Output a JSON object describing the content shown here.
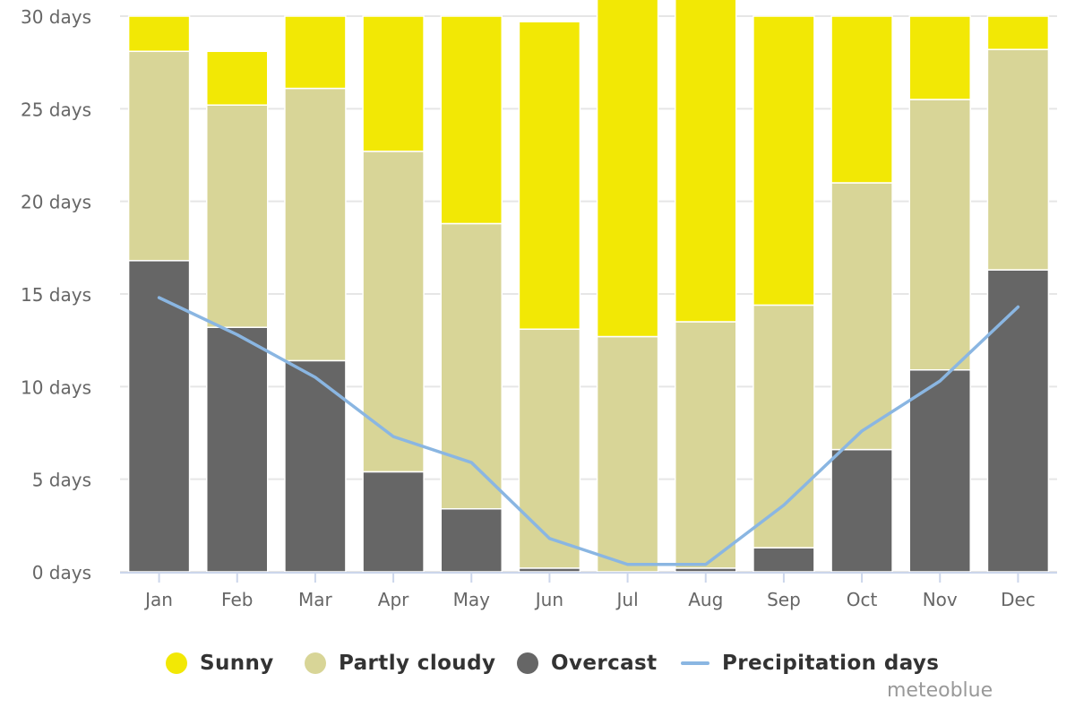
{
  "chart_data": {
    "type": "bar",
    "stacked": true,
    "categories": [
      "Jan",
      "Feb",
      "Mar",
      "Apr",
      "May",
      "Jun",
      "Jul",
      "Aug",
      "Sep",
      "Oct",
      "Nov",
      "Dec"
    ],
    "ylim": [
      0,
      30
    ],
    "yticks": [
      0,
      5,
      10,
      15,
      20,
      25,
      30
    ],
    "ytick_labels": [
      "0 days",
      "5 days",
      "10 days",
      "15 days",
      "20 days",
      "25 days",
      "30 days"
    ],
    "grid": true,
    "legend_position": "bottom",
    "series": [
      {
        "name": "Overcast",
        "color": "#666666",
        "values": [
          16.8,
          13.2,
          11.4,
          5.4,
          3.4,
          0.2,
          0.0,
          0.2,
          1.3,
          6.6,
          10.9,
          16.3
        ]
      },
      {
        "name": "Partly cloudy",
        "color": "#d8d597",
        "values": [
          11.3,
          12.0,
          14.7,
          17.3,
          15.4,
          12.9,
          12.7,
          13.3,
          13.1,
          14.4,
          14.6,
          11.9
        ]
      },
      {
        "name": "Sunny",
        "color": "#f2e805",
        "values": [
          1.9,
          2.9,
          3.9,
          7.3,
          11.2,
          16.6,
          18.3,
          17.5,
          15.6,
          9.0,
          4.5,
          1.8
        ]
      }
    ],
    "line_series": {
      "name": "Precipitation days",
      "color": "#8ab6e2",
      "values": [
        14.8,
        12.8,
        10.5,
        7.3,
        5.9,
        1.8,
        0.4,
        0.4,
        3.6,
        7.6,
        10.3,
        14.3
      ]
    }
  },
  "legend": {
    "sunny": {
      "label": "Sunny",
      "color": "#f2e805"
    },
    "partly_cloudy": {
      "label": "Partly cloudy",
      "color": "#d8d597"
    },
    "overcast": {
      "label": "Overcast",
      "color": "#666666"
    },
    "precipitation": {
      "label": "Precipitation days",
      "color": "#8ab6e2"
    }
  },
  "credit": "meteoblue"
}
